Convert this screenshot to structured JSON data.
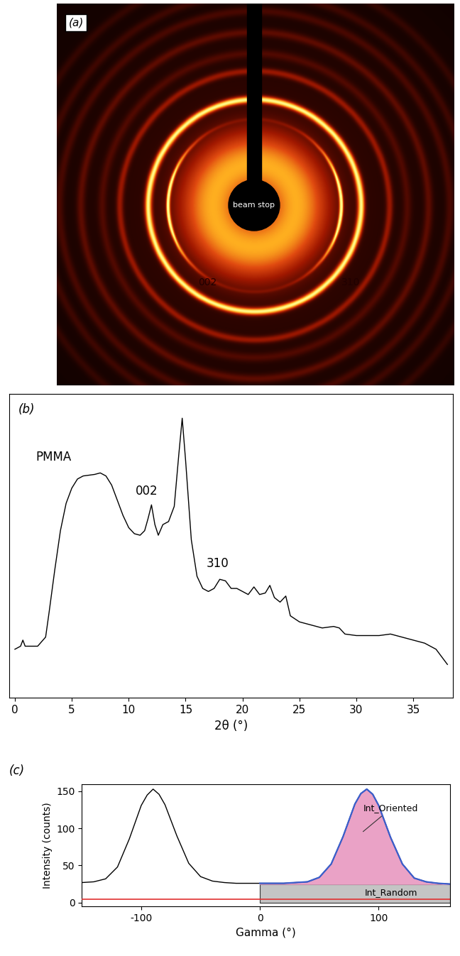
{
  "image": {
    "panel": "(a)",
    "labels": {
      "beam_stop": "beam stop",
      "ring_002": "002",
      "ring_310": "310"
    }
  },
  "chart_data": [
    {
      "type": "line",
      "panel": "(b)",
      "x_label": "2θ (°)",
      "x": [
        0,
        0.5,
        0.7,
        0.9,
        2,
        2.7,
        3,
        3.5,
        4,
        4.5,
        5,
        5.5,
        6,
        7,
        7.5,
        8,
        8.5,
        9,
        9.5,
        10,
        10.5,
        11,
        11.4,
        11.7,
        12.0,
        12.3,
        12.6,
        13.0,
        13.5,
        14,
        14.4,
        14.7,
        15.0,
        15.5,
        16,
        16.5,
        17,
        17.5,
        18,
        18.5,
        19,
        19.5,
        20,
        20.5,
        21,
        21.5,
        22,
        22.4,
        22.8,
        23.3,
        23.8,
        24.2,
        25,
        26,
        27,
        28,
        28.5,
        29,
        30,
        32,
        33,
        34,
        35,
        36,
        37,
        38
      ],
      "values": [
        16,
        17,
        19,
        17,
        17,
        20,
        28,
        42,
        55,
        64,
        69,
        72,
        73,
        73.5,
        74,
        73,
        70,
        65,
        60,
        56,
        54,
        53.5,
        55,
        59,
        63.5,
        57,
        53.5,
        57,
        58,
        63,
        80,
        92,
        78,
        52,
        40,
        36,
        35,
        36,
        39,
        38.5,
        36,
        36,
        35,
        34,
        36.5,
        34,
        34.5,
        37,
        33,
        31.5,
        33.5,
        27,
        25,
        24,
        23,
        23.5,
        23,
        21,
        20.5,
        20.5,
        21,
        20,
        19,
        18,
        16,
        11
      ],
      "xlim": [
        -0.5,
        38.5
      ],
      "xticks": [
        0,
        5,
        10,
        15,
        20,
        25,
        30,
        35
      ],
      "ylim": [
        0,
        100
      ],
      "tick_labels": "x",
      "color": "#000000",
      "annotations": [
        "PMMA",
        "002",
        "310"
      ]
    },
    {
      "type": "line",
      "panel": "(c)",
      "x_label": "Gamma (°)",
      "y_label": "Intensity (counts)",
      "x": [
        -150,
        -140,
        -130,
        -120,
        -110,
        -100,
        -95,
        -90,
        -85,
        -80,
        -70,
        -60,
        -50,
        -40,
        -30,
        -20,
        -10,
        0,
        10,
        20,
        30,
        40,
        50,
        60,
        70,
        80,
        85,
        90,
        95,
        100,
        110,
        120,
        130,
        140,
        150,
        160
      ],
      "values": [
        27,
        28,
        32,
        48,
        86,
        131,
        145,
        153,
        146,
        132,
        90,
        53,
        35,
        29,
        27,
        26,
        26,
        26,
        26,
        26,
        27,
        28,
        34,
        52,
        89,
        133,
        147,
        153,
        146,
        131,
        88,
        52,
        33,
        28,
        26,
        25
      ],
      "xlim": [
        -150,
        160
      ],
      "xticks": [
        -100,
        0,
        100
      ],
      "ylim": [
        -5,
        160
      ],
      "yticks": [
        0,
        50,
        100,
        150
      ],
      "color": "#000000",
      "oriented": {
        "label": "Int_Oriented",
        "start": 0
      },
      "random": {
        "label": "Int_Random",
        "level": 25,
        "start": 0
      },
      "background_level": 5
    }
  ]
}
